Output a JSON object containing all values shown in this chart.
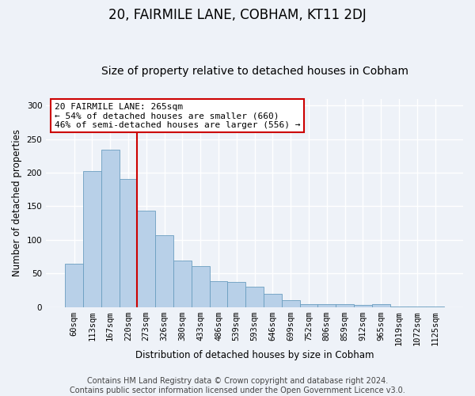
{
  "title": "20, FAIRMILE LANE, COBHAM, KT11 2DJ",
  "subtitle": "Size of property relative to detached houses in Cobham",
  "xlabel": "Distribution of detached houses by size in Cobham",
  "ylabel": "Number of detached properties",
  "categories": [
    "60sqm",
    "113sqm",
    "167sqm",
    "220sqm",
    "273sqm",
    "326sqm",
    "380sqm",
    "433sqm",
    "486sqm",
    "539sqm",
    "593sqm",
    "646sqm",
    "699sqm",
    "752sqm",
    "806sqm",
    "859sqm",
    "912sqm",
    "965sqm",
    "1019sqm",
    "1072sqm",
    "1125sqm"
  ],
  "values": [
    64,
    202,
    234,
    191,
    144,
    107,
    69,
    61,
    39,
    38,
    30,
    20,
    10,
    5,
    4,
    4,
    3,
    4,
    1,
    1,
    1
  ],
  "bar_color": "#b8d0e8",
  "bar_edge_color": "#6a9ec0",
  "vline_color": "#cc0000",
  "annotation_title": "20 FAIRMILE LANE: 265sqm",
  "annotation_line2": "← 54% of detached houses are smaller (660)",
  "annotation_line3": "46% of semi-detached houses are larger (556) →",
  "annotation_box_color": "#cc0000",
  "annotation_box_fill": "#ffffff",
  "ylim": [
    0,
    310
  ],
  "yticks": [
    0,
    50,
    100,
    150,
    200,
    250,
    300
  ],
  "footer_line1": "Contains HM Land Registry data © Crown copyright and database right 2024.",
  "footer_line2": "Contains public sector information licensed under the Open Government Licence v3.0.",
  "bg_color": "#eef2f8",
  "grid_color": "#ffffff",
  "title_fontsize": 12,
  "subtitle_fontsize": 10,
  "footer_fontsize": 7,
  "axis_fontsize": 8.5,
  "tick_fontsize": 7.5,
  "ylabel_fontsize": 8.5
}
